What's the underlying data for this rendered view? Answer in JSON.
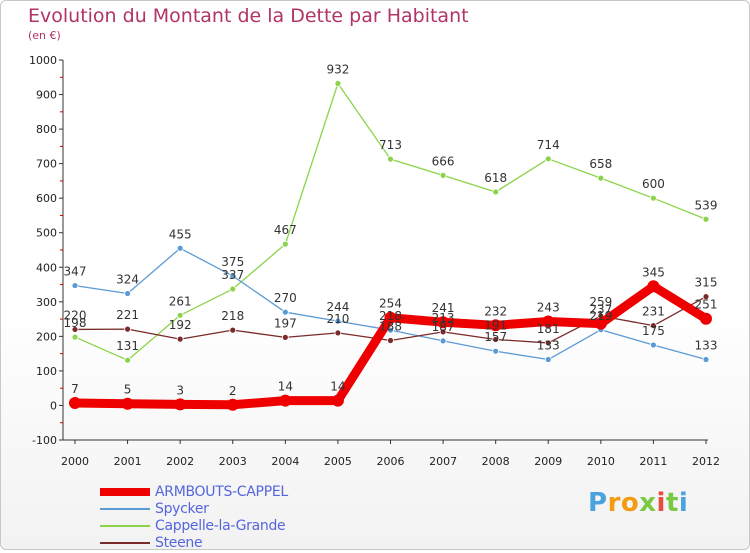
{
  "header": {
    "title": "Evolution du Montant de la Dette par Habitant",
    "subtitle": "(en €)"
  },
  "brand": {
    "text": "Proxiti",
    "letter_colors": [
      "#4aa3df",
      "#f39c12",
      "#f39c12",
      "#7ac943",
      "#e74c3c",
      "#7ac943",
      "#4aa3df"
    ]
  },
  "chart_data": {
    "type": "line",
    "title": "Evolution du Montant de la Dette par Habitant",
    "subtitle": "(en €)",
    "xlabel": "",
    "ylabel": "",
    "x": [
      "2000",
      "2001",
      "2002",
      "2003",
      "2004",
      "2005",
      "2006",
      "2007",
      "2008",
      "2009",
      "2010",
      "2011",
      "2012"
    ],
    "ylim": [
      -100,
      1000
    ],
    "yticks": [
      "-100",
      "0",
      "100",
      "200",
      "300",
      "400",
      "500",
      "600",
      "700",
      "800",
      "900",
      "1000"
    ],
    "grid": false,
    "legend_position": "bottom-left",
    "series": [
      {
        "name": "ARMBOUTS-CAPPEL",
        "color": "#ee0000",
        "values": [
          7,
          5,
          3,
          2,
          14,
          14,
          254,
          241,
          232,
          243,
          237,
          345,
          251
        ],
        "labels": [
          "7",
          "5",
          "3",
          "2",
          "14",
          "14",
          "254",
          "241",
          "232",
          "243",
          "237",
          "345",
          "251"
        ]
      },
      {
        "name": "Spycker",
        "color": "#5b9bd5",
        "values": [
          347,
          324,
          455,
          375,
          270,
          244,
          218,
          187,
          157,
          133,
          219,
          175,
          133
        ],
        "labels": [
          "347",
          "324",
          "455",
          "375",
          "270",
          "244",
          "218",
          "187",
          "157",
          "133",
          "219",
          "175",
          "133"
        ]
      },
      {
        "name": "Cappelle-la-Grande",
        "color": "#8bd44a",
        "values": [
          198,
          131,
          261,
          337,
          467,
          932,
          713,
          666,
          618,
          714,
          658,
          600,
          539
        ],
        "labels": [
          "198",
          "131",
          "261",
          "337",
          "467",
          "932",
          "713",
          "666",
          "618",
          "714",
          "658",
          "600",
          "539"
        ]
      },
      {
        "name": "Steene",
        "color": "#7a2a2a",
        "values": [
          220,
          221,
          192,
          218,
          197,
          210,
          188,
          213,
          191,
          181,
          259,
          231,
          315
        ],
        "labels": [
          "220",
          "221",
          "192",
          "218",
          "197",
          "210",
          "188",
          "213",
          "191",
          "181",
          "259",
          "231",
          "315"
        ]
      }
    ]
  }
}
